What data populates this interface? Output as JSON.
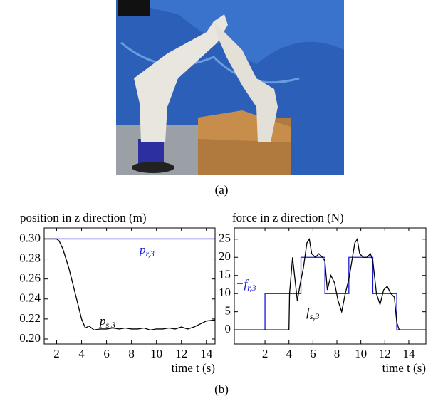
{
  "caption_a": "(a)",
  "caption_b": "(b)",
  "chart_data": [
    {
      "type": "line",
      "title": "position in z direction (m)",
      "x_label": "time t (s)",
      "xlim": [
        1,
        14.7
      ],
      "ylim": [
        0.195,
        0.311
      ],
      "xticks": [
        2,
        4,
        6,
        8,
        10,
        12,
        14
      ],
      "yticks": [
        {
          "value": 0.2,
          "label": "0.20"
        },
        {
          "value": 0.22,
          "label": "0.22"
        },
        {
          "value": 0.24,
          "label": "0.24"
        },
        {
          "value": 0.26,
          "label": "0.26"
        },
        {
          "value": 0.28,
          "label": "0.28"
        },
        {
          "value": 0.3,
          "label": "0.30"
        }
      ],
      "series": [
        {
          "name": "p",
          "sub": "r,3",
          "color": "#1a1ad6",
          "x": [
            1,
            14.7
          ],
          "values": [
            0.3,
            0.3
          ]
        },
        {
          "name": "p",
          "sub": "s,3",
          "color": "#000000",
          "x": [
            1,
            2,
            2.2,
            2.5,
            3,
            3.5,
            4,
            4.3,
            4.6,
            5,
            5.5,
            6,
            6.5,
            7,
            7.5,
            8,
            8.5,
            9,
            9.5,
            10,
            10.5,
            11,
            11.5,
            12,
            12.5,
            13,
            13.5,
            14,
            14.7
          ],
          "values": [
            0.3,
            0.3,
            0.298,
            0.29,
            0.27,
            0.245,
            0.22,
            0.211,
            0.213,
            0.209,
            0.21,
            0.21,
            0.211,
            0.21,
            0.211,
            0.21,
            0.21,
            0.211,
            0.209,
            0.21,
            0.21,
            0.211,
            0.21,
            0.212,
            0.21,
            0.212,
            0.215,
            0.218,
            0.219
          ]
        }
      ]
    },
    {
      "type": "line",
      "title": "force in z direction (N)",
      "x_label": "time t (s)",
      "xlim": [
        -0.56,
        15.43
      ],
      "ylim": [
        -3.9,
        28.1
      ],
      "xticks": [
        2,
        4,
        6,
        8,
        10,
        12,
        14
      ],
      "yticks": [
        0,
        5,
        10,
        15,
        20,
        25
      ],
      "series": [
        {
          "name": "−f",
          "sub": "r,3",
          "color": "#1a1ad6",
          "x": [
            -0.56,
            2,
            2,
            5,
            5,
            7,
            7,
            9,
            9,
            11,
            11,
            13,
            13,
            15.43
          ],
          "values": [
            0,
            0,
            10,
            10,
            20,
            20,
            10,
            10,
            20,
            20,
            10,
            10,
            0,
            0
          ]
        },
        {
          "name": "f",
          "sub": "s,3",
          "color": "#000000",
          "x": [
            -0.56,
            4,
            4.05,
            4.3,
            4.5,
            4.7,
            4.9,
            5.2,
            5.5,
            5.7,
            5.9,
            6.2,
            6.5,
            6.8,
            7.0,
            7.2,
            7.5,
            7.8,
            8.1,
            8.4,
            8.7,
            9.0,
            9.3,
            9.5,
            9.7,
            9.9,
            10.2,
            10.5,
            10.8,
            11.0,
            11.3,
            11.6,
            11.9,
            12.2,
            12.5,
            12.8,
            13.0,
            13.2,
            15.43
          ],
          "values": [
            0,
            0,
            10,
            20,
            14,
            8,
            12,
            17,
            24,
            25,
            21,
            20,
            21,
            20,
            19,
            11,
            15,
            13,
            8,
            5,
            10,
            14,
            20,
            24,
            25,
            21,
            20,
            20,
            21,
            19,
            10,
            7,
            11,
            12,
            10,
            9,
            2,
            0,
            0
          ]
        }
      ]
    }
  ]
}
